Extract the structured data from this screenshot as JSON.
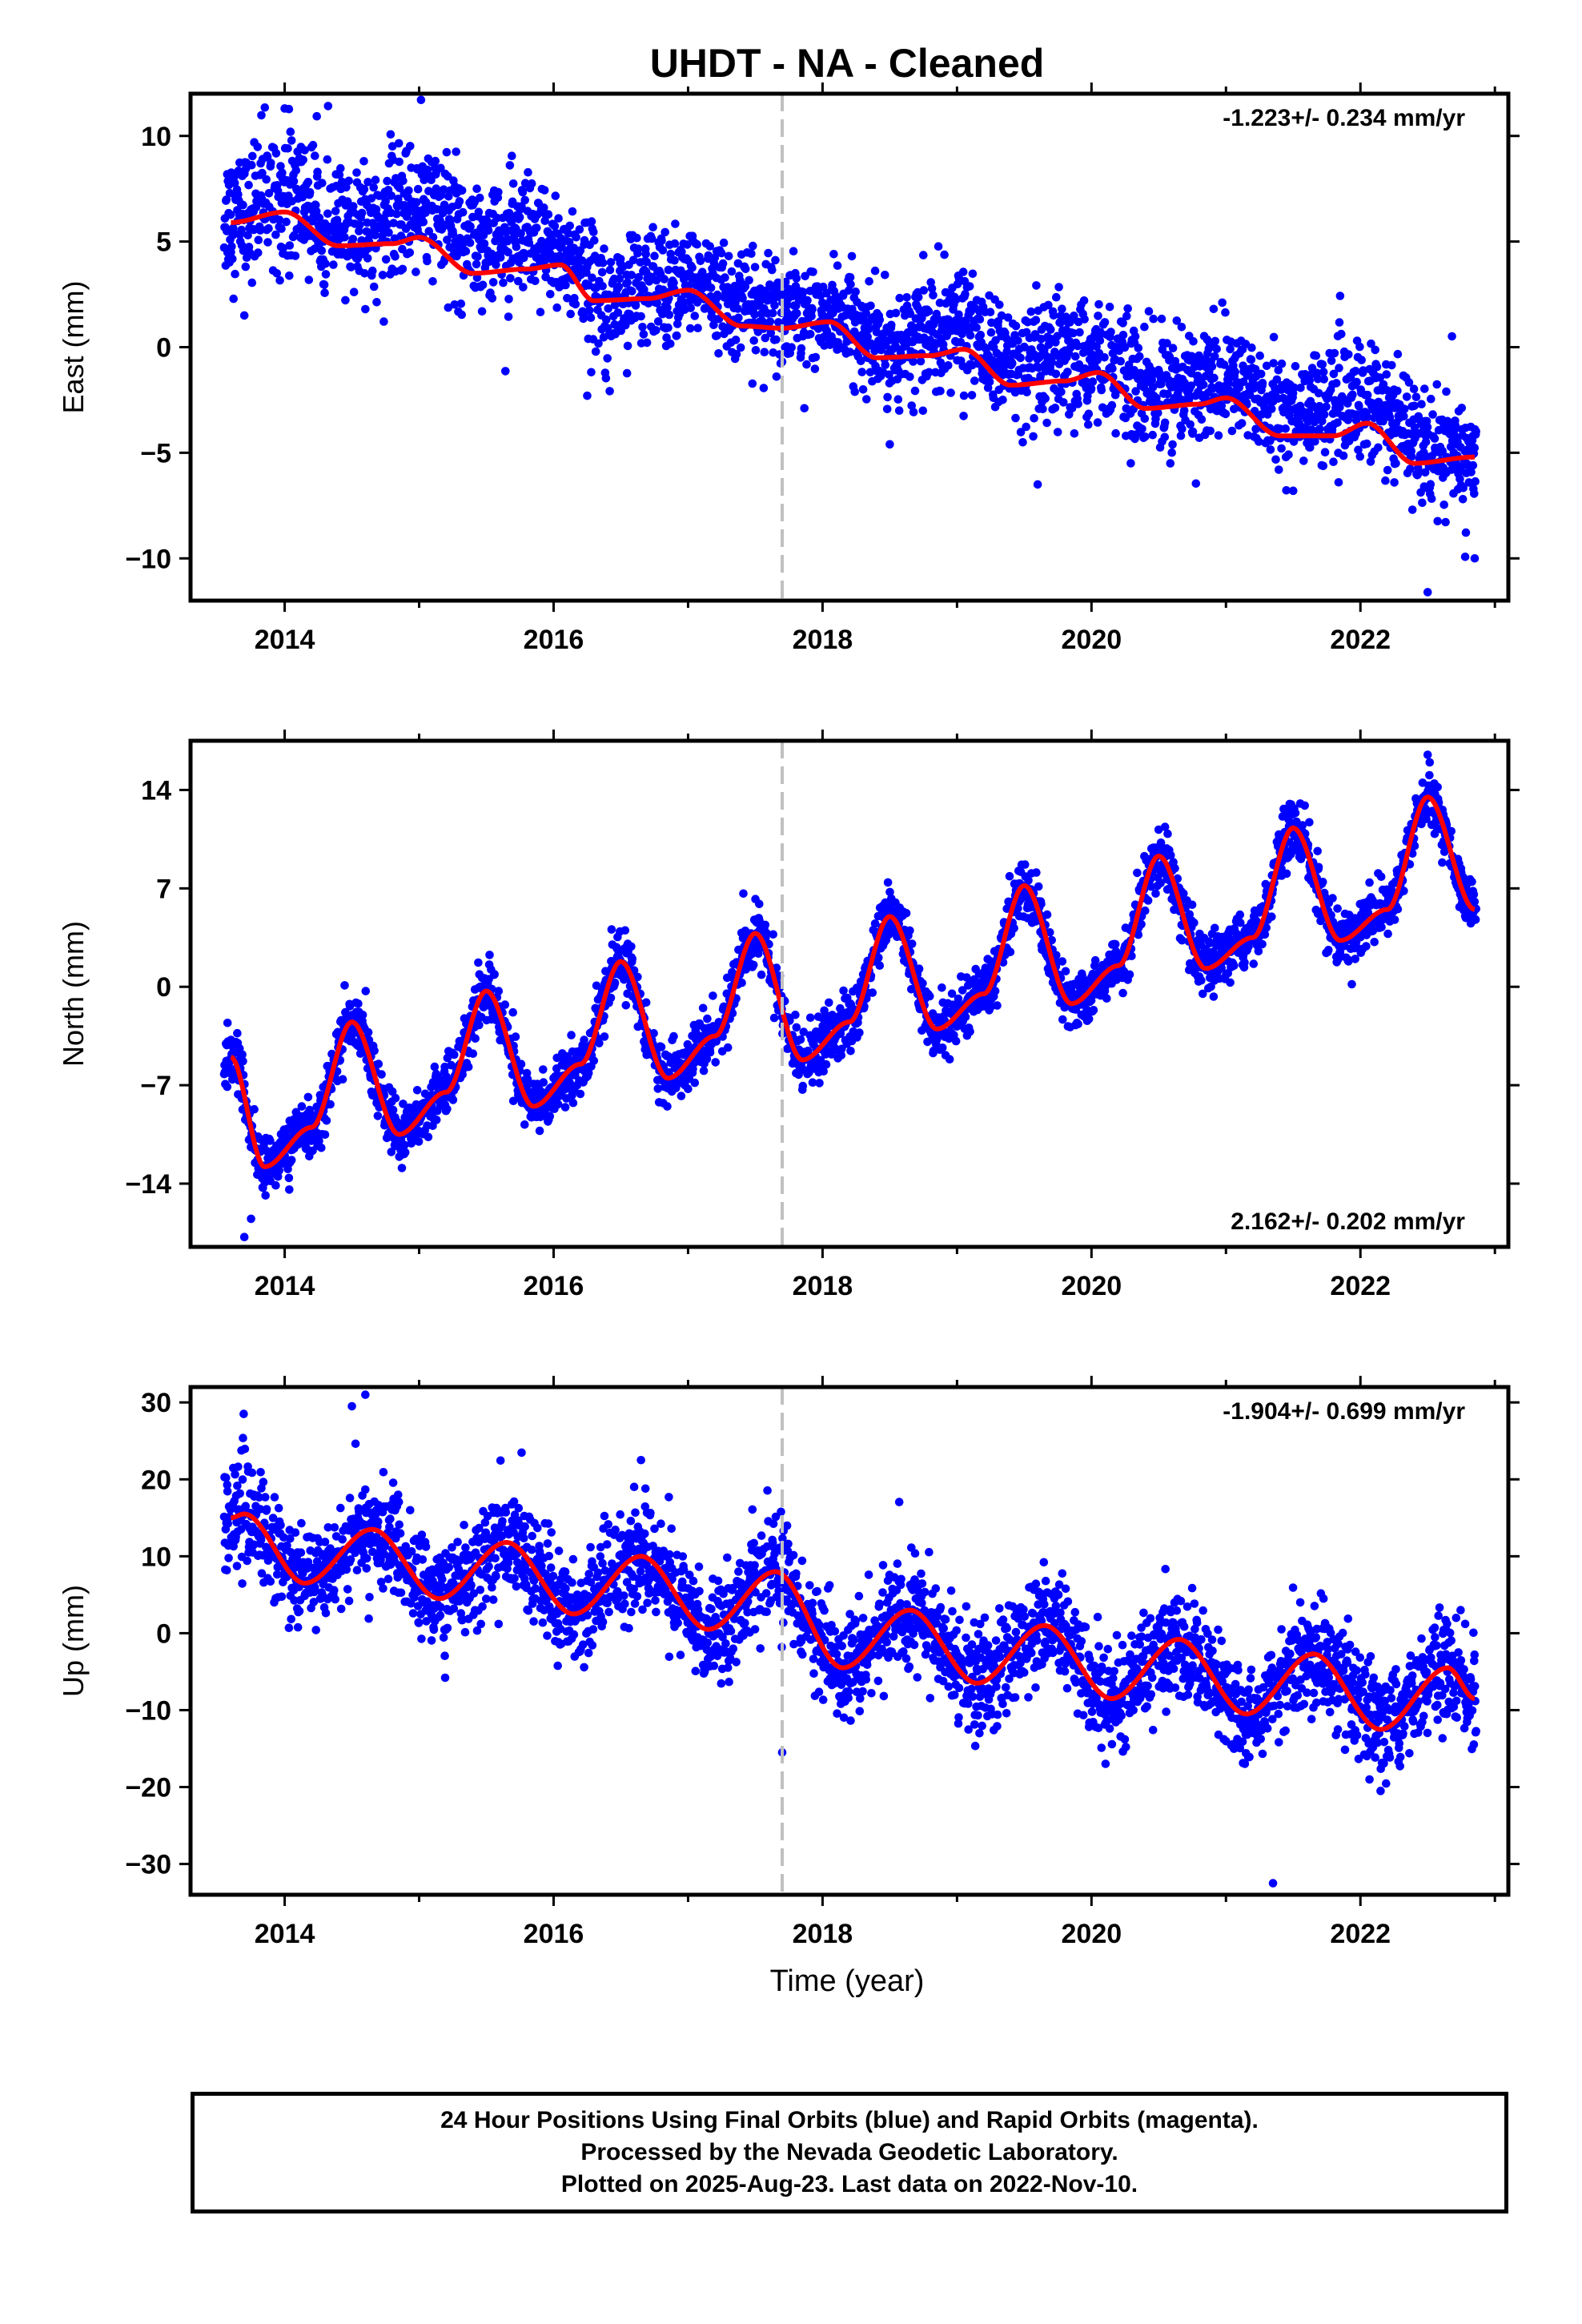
{
  "title": "UHDT  - NA - Cleaned",
  "xlabel": "Time (year)",
  "footer": {
    "line1": "24 Hour Positions Using Final Orbits (blue) and Rapid Orbits (magenta).",
    "line2": "Processed by the Nevada Geodetic Laboratory.",
    "line3": "Plotted on 2025-Aug-23. Last data on 2022-Nov-10."
  },
  "colors": {
    "points": "#0000ff",
    "model": "#ff0000",
    "event_line": "#c0c0c0",
    "frame": "#000000"
  },
  "chart_data": [
    {
      "type": "scatter",
      "panel": "east",
      "ylabel": "East (mm)",
      "rate_label": "-1.223+/- 0.234 mm/yr",
      "rate_position": "top-right",
      "xlim": [
        2013.3,
        2023.1
      ],
      "ylim": [
        -12,
        12
      ],
      "yticks": [
        10,
        5,
        0,
        -5,
        -10
      ],
      "xticks": [
        2014,
        2016,
        2018,
        2020,
        2022
      ],
      "event_line_x": 2017.7,
      "data_start": 2013.55,
      "data_end": 2022.86,
      "model_curve": {
        "x": [
          2013.6,
          2014.0,
          2014.4,
          2014.8,
          2015.0,
          2015.4,
          2015.8,
          2016.05,
          2016.3,
          2016.7,
          2017.0,
          2017.4,
          2017.7,
          2018.05,
          2018.4,
          2018.8,
          2019.05,
          2019.4,
          2019.8,
          2020.05,
          2020.4,
          2020.8,
          2021.0,
          2021.4,
          2021.8,
          2022.05,
          2022.4,
          2022.85
        ],
        "y": [
          5.9,
          6.4,
          4.8,
          4.9,
          5.2,
          3.5,
          3.7,
          3.9,
          2.2,
          2.3,
          2.7,
          1.0,
          0.9,
          1.2,
          -0.5,
          -0.4,
          -0.1,
          -1.8,
          -1.6,
          -1.2,
          -2.9,
          -2.7,
          -2.4,
          -4.2,
          -4.2,
          -3.6,
          -5.5,
          -5.2
        ]
      },
      "scatter_band_x": [
        2013.6,
        2014.0,
        2014.5,
        2015.0,
        2015.5,
        2016.0,
        2016.5,
        2017.0,
        2017.5,
        2018.0,
        2018.5,
        2019.0,
        2019.5,
        2020.0,
        2020.5,
        2021.0,
        2021.5,
        2022.0,
        2022.5,
        2022.85
      ],
      "scatter_band_center": [
        5.5,
        7.0,
        5.0,
        7.0,
        5.5,
        4.0,
        1.5,
        2.5,
        1.5,
        0.8,
        -0.5,
        1.0,
        -1.5,
        -1.5,
        -2.5,
        -2.0,
        -3.0,
        -2.5,
        -5.0,
        -6.5
      ],
      "scatter_band_spread": [
        1.8,
        2.0,
        1.6,
        1.8,
        1.8,
        1.8,
        1.6,
        1.5,
        1.4,
        1.4,
        1.5,
        1.6,
        1.6,
        1.8,
        1.6,
        1.6,
        1.6,
        1.6,
        2.0,
        1.6
      ],
      "outliers": [
        [
          2013.7,
          1.5
        ],
        [
          2014.0,
          11.3
        ],
        [
          2014.6,
          1.8
        ],
        [
          2016.25,
          -2.3
        ],
        [
          2018.5,
          -4.6
        ],
        [
          2019.6,
          -6.5
        ],
        [
          2021.5,
          -6.8
        ],
        [
          2022.5,
          -11.6
        ],
        [
          2022.85,
          -10.0
        ]
      ]
    },
    {
      "type": "scatter",
      "panel": "north",
      "ylabel": "North (mm)",
      "rate_label": "2.162+/- 0.202 mm/yr",
      "rate_position": "bottom-right",
      "xlim": [
        2013.3,
        2023.1
      ],
      "ylim": [
        -18.5,
        17.5
      ],
      "yticks": [
        14,
        7,
        0,
        -7,
        -14
      ],
      "xticks": [
        2014,
        2016,
        2018,
        2020,
        2022
      ],
      "event_line_x": 2017.7,
      "data_start": 2013.55,
      "data_end": 2022.86,
      "model_curve": {
        "x": [
          2013.6,
          2013.85,
          2014.2,
          2014.5,
          2014.85,
          2015.2,
          2015.5,
          2015.85,
          2016.2,
          2016.5,
          2016.85,
          2017.2,
          2017.5,
          2017.85,
          2018.2,
          2018.5,
          2018.85,
          2019.2,
          2019.5,
          2019.85,
          2020.2,
          2020.5,
          2020.85,
          2021.2,
          2021.5,
          2021.85,
          2022.2,
          2022.5,
          2022.85
        ],
        "y": [
          -5.0,
          -12.8,
          -10.0,
          -2.5,
          -10.5,
          -7.5,
          -0.3,
          -8.5,
          -5.5,
          1.8,
          -6.5,
          -3.5,
          3.8,
          -5.2,
          -2.5,
          5.0,
          -3.0,
          -0.5,
          7.2,
          -1.2,
          1.5,
          9.3,
          1.3,
          3.5,
          11.3,
          3.3,
          5.5,
          13.5,
          5.5
        ]
      },
      "scatter_spread": 1.2,
      "outliers": [
        [
          2013.7,
          -17.8
        ],
        [
          2013.75,
          -16.5
        ],
        [
          2022.5,
          16.5
        ]
      ]
    },
    {
      "type": "scatter",
      "panel": "up",
      "ylabel": "Up (mm)",
      "rate_label": "-1.904+/- 0.699 mm/yr",
      "rate_position": "top-right",
      "xlim": [
        2013.3,
        2023.1
      ],
      "ylim": [
        -34,
        32
      ],
      "yticks": [
        30,
        20,
        10,
        0,
        -10,
        -20,
        -30
      ],
      "xticks": [
        2014,
        2016,
        2018,
        2020,
        2022
      ],
      "event_line_x": 2017.7,
      "data_start": 2013.55,
      "data_end": 2022.86,
      "model_curve": {
        "x": [
          2013.6,
          2013.7,
          2014.15,
          2014.65,
          2015.15,
          2015.65,
          2016.15,
          2016.65,
          2017.15,
          2017.65,
          2018.15,
          2018.65,
          2019.15,
          2019.65,
          2020.15,
          2020.65,
          2021.15,
          2021.65,
          2022.15,
          2022.65,
          2022.85
        ],
        "y": [
          15.0,
          15.5,
          6.5,
          13.5,
          4.5,
          11.8,
          2.5,
          10.0,
          0.5,
          8.0,
          -4.5,
          3.0,
          -6.5,
          1.0,
          -8.5,
          -0.8,
          -10.5,
          -2.7,
          -12.5,
          -4.5,
          -8.5
        ]
      },
      "scatter_spread": 4.0,
      "outliers": [
        [
          2014.5,
          29.5
        ],
        [
          2014.6,
          31.0
        ],
        [
          2016.65,
          22.5
        ],
        [
          2017.7,
          -15.5
        ],
        [
          2021.35,
          -32.5
        ],
        [
          2022.15,
          -20.5
        ]
      ]
    }
  ]
}
